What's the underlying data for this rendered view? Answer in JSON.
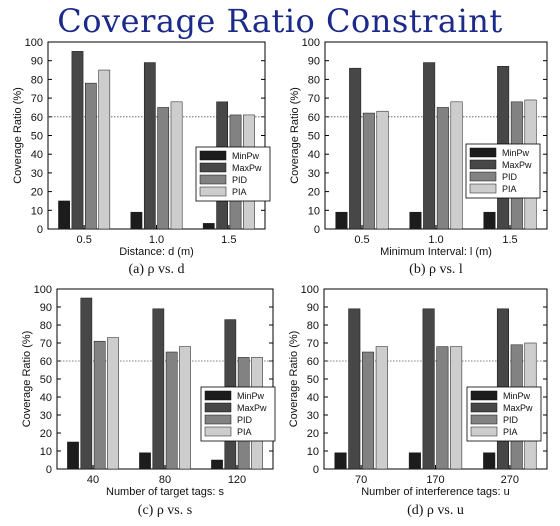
{
  "title": "Coverage Ratio Constraint",
  "colors": {
    "MinPw": "#1c1c1c",
    "MaxPw": "#474747",
    "PID": "#828282",
    "PIA": "#cdcdcd",
    "title": "#1c2a8a"
  },
  "chart_data": [
    {
      "type": "bar",
      "caption": "(a) ρ vs. d",
      "categories": [
        "0.5",
        "1.0",
        "1.5"
      ],
      "xlabel": "Distance: d (m)",
      "ylabel": "Coverage Ratio (%)",
      "ylim": [
        0,
        100
      ],
      "yticks": [
        0,
        10,
        20,
        30,
        40,
        50,
        60,
        70,
        80,
        90,
        100
      ],
      "reference_line": 60,
      "legend": "lower-right",
      "series": [
        {
          "name": "MinPw",
          "values": [
            15,
            9,
            3
          ]
        },
        {
          "name": "MaxPw",
          "values": [
            95,
            89,
            68
          ]
        },
        {
          "name": "PID",
          "values": [
            78,
            65,
            61
          ]
        },
        {
          "name": "PIA",
          "values": [
            85,
            68,
            61
          ]
        }
      ]
    },
    {
      "type": "bar",
      "caption": "(b) ρ vs. l",
      "categories": [
        "0.5",
        "1.0",
        "1.5"
      ],
      "xlabel": "Minimum Interval: l (m)",
      "ylabel": "Coverage Ratio (%)",
      "ylim": [
        0,
        100
      ],
      "yticks": [
        0,
        10,
        20,
        30,
        40,
        50,
        60,
        70,
        80,
        90,
        100
      ],
      "reference_line": 60,
      "legend": "lower-right",
      "series": [
        {
          "name": "MinPw",
          "values": [
            9,
            9,
            9
          ]
        },
        {
          "name": "MaxPw",
          "values": [
            86,
            89,
            87
          ]
        },
        {
          "name": "PID",
          "values": [
            62,
            65,
            68
          ]
        },
        {
          "name": "PIA",
          "values": [
            63,
            68,
            69
          ]
        }
      ]
    },
    {
      "type": "bar",
      "caption": "(c) ρ vs. s",
      "categories": [
        "40",
        "80",
        "120"
      ],
      "xlabel": "Number of target tags: s",
      "ylabel": "Coverage Ratio (%)",
      "ylim": [
        0,
        100
      ],
      "yticks": [
        0,
        10,
        20,
        30,
        40,
        50,
        60,
        70,
        80,
        90,
        100
      ],
      "reference_line": 60,
      "legend": "lower-right",
      "series": [
        {
          "name": "MinPw",
          "values": [
            15,
            9,
            5
          ]
        },
        {
          "name": "MaxPw",
          "values": [
            95,
            89,
            83
          ]
        },
        {
          "name": "PID",
          "values": [
            71,
            65,
            62
          ]
        },
        {
          "name": "PIA",
          "values": [
            73,
            68,
            62
          ]
        }
      ]
    },
    {
      "type": "bar",
      "caption": "(d) ρ vs. u",
      "categories": [
        "70",
        "170",
        "270"
      ],
      "xlabel": "Number of interference tags: u",
      "ylabel": "Coverage Ratio (%)",
      "ylim": [
        0,
        100
      ],
      "yticks": [
        0,
        10,
        20,
        30,
        40,
        50,
        60,
        70,
        80,
        90,
        100
      ],
      "reference_line": 60,
      "legend": "lower-right",
      "series": [
        {
          "name": "MinPw",
          "values": [
            9,
            9,
            9
          ]
        },
        {
          "name": "MaxPw",
          "values": [
            89,
            89,
            89
          ]
        },
        {
          "name": "PID",
          "values": [
            65,
            68,
            69
          ]
        },
        {
          "name": "PIA",
          "values": [
            68,
            68,
            70
          ]
        }
      ]
    }
  ]
}
